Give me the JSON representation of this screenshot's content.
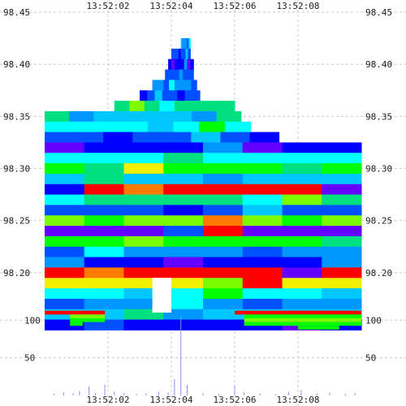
{
  "chart_data": {
    "type": "heatmap",
    "title": "",
    "xlabel": "",
    "ylabel": "",
    "x_ticks": [
      "13:52:02",
      "13:52:04",
      "13:52:06",
      "13:52:08"
    ],
    "price_ticks": [
      "98.45",
      "98.40",
      "98.35",
      "98.30",
      "98.25",
      "98.20"
    ],
    "volume_ticks": [
      "100",
      "50"
    ],
    "price_range": [
      98.15,
      98.45
    ],
    "volume_range": [
      0,
      110
    ],
    "grid": true,
    "colors": {
      "background": "#ffffff",
      "grid": "#c8c8c8",
      "volume": "#8c8cff",
      "palette": [
        "#ff0000",
        "#ff7a00",
        "#f0f000",
        "#7cfc00",
        "#00ff00",
        "#00e080",
        "#00ffff",
        "#00c8ff",
        "#0096ff",
        "#0050ff",
        "#0000ff",
        "#6400ff"
      ]
    },
    "time_range": [
      0,
      10
    ],
    "price_bands": [
      {
        "price": 98.42,
        "t_from": 4.3,
        "t_to": 4.6,
        "color": 8
      },
      {
        "price": 98.41,
        "t_from": 4.0,
        "t_to": 4.6,
        "color": 9
      },
      {
        "price": 98.4,
        "t_from": 3.9,
        "t_to": 4.7,
        "color": 10
      },
      {
        "price": 98.39,
        "t_from": 3.8,
        "t_to": 4.7,
        "color": 9
      },
      {
        "price": 98.38,
        "t_from": 3.4,
        "t_to": 4.8,
        "color": 8
      },
      {
        "price": 98.37,
        "t_from": 3.0,
        "t_to": 4.9,
        "color": 9
      },
      {
        "price": 98.36,
        "t_from": 2.2,
        "t_to": 6.0,
        "color": 5
      },
      {
        "price": 98.35,
        "t_from": 0.0,
        "t_to": 6.2,
        "color": 7
      },
      {
        "price": 98.34,
        "t_from": 0.0,
        "t_to": 6.5,
        "color": 6
      },
      {
        "price": 98.33,
        "t_from": 0.0,
        "t_to": 7.4,
        "color": 9
      },
      {
        "price": 98.32,
        "t_from": 0.0,
        "t_to": 10.0,
        "color": 10
      },
      {
        "price": 98.31,
        "t_from": 0.0,
        "t_to": 10.0,
        "color": 6
      },
      {
        "price": 98.3,
        "t_from": 0.0,
        "t_to": 10.0,
        "color": 4
      },
      {
        "price": 98.29,
        "t_from": 0.0,
        "t_to": 10.0,
        "color": 7
      },
      {
        "price": 98.28,
        "t_from": 0.0,
        "t_to": 10.0,
        "color": 0
      },
      {
        "price": 98.27,
        "t_from": 0.0,
        "t_to": 10.0,
        "color": 5
      },
      {
        "price": 98.26,
        "t_from": 0.0,
        "t_to": 10.0,
        "color": 9
      },
      {
        "price": 98.25,
        "t_from": 0.0,
        "t_to": 10.0,
        "color": 3
      },
      {
        "price": 98.24,
        "t_from": 0.0,
        "t_to": 10.0,
        "color": 11
      },
      {
        "price": 98.23,
        "t_from": 0.0,
        "t_to": 10.0,
        "color": 4
      },
      {
        "price": 98.22,
        "t_from": 0.0,
        "t_to": 10.0,
        "color": 8
      },
      {
        "price": 98.21,
        "t_from": 0.0,
        "t_to": 10.0,
        "color": 10
      },
      {
        "price": 98.2,
        "t_from": 0.0,
        "t_to": 10.0,
        "color": 0
      },
      {
        "price": 98.19,
        "t_from": 0.0,
        "t_to": 10.0,
        "color": 2
      },
      {
        "price": 98.18,
        "t_from": 0.0,
        "t_to": 10.0,
        "color": 6
      },
      {
        "price": 98.17,
        "t_from": 0.0,
        "t_to": 10.0,
        "color": 8
      },
      {
        "price": 98.16,
        "t_from": 0.0,
        "t_to": 10.0,
        "color": 7
      },
      {
        "price": 98.15,
        "t_from": 0.0,
        "t_to": 10.0,
        "color": 10
      }
    ],
    "volume_bands": [
      {
        "volume": 110,
        "t_from": 0.0,
        "t_to": 1.9,
        "color": 0
      },
      {
        "volume": 110,
        "t_from": 6.0,
        "t_to": 10.0,
        "color": 0
      },
      {
        "volume": 105,
        "t_from": 0.8,
        "t_to": 1.9,
        "color": 3
      },
      {
        "volume": 105,
        "t_from": 6.3,
        "t_to": 10.0,
        "color": 4
      },
      {
        "volume": 100,
        "t_from": 0.8,
        "t_to": 1.9,
        "color": 4
      },
      {
        "volume": 100,
        "t_from": 6.3,
        "t_to": 10.0,
        "color": 3
      },
      {
        "volume": 95,
        "t_from": 0.8,
        "t_to": 1.2,
        "color": 4
      },
      {
        "volume": 95,
        "t_from": 6.3,
        "t_to": 10.0,
        "color": 4
      },
      {
        "volume": 90,
        "t_from": 8.0,
        "t_to": 9.3,
        "color": 4
      }
    ],
    "volume_bars": [
      {
        "t": 0.3,
        "v": 2
      },
      {
        "t": 0.6,
        "v": 4
      },
      {
        "t": 0.9,
        "v": 3
      },
      {
        "t": 1.1,
        "v": 6
      },
      {
        "t": 1.4,
        "v": 12
      },
      {
        "t": 1.6,
        "v": 3
      },
      {
        "t": 1.9,
        "v": 14
      },
      {
        "t": 2.2,
        "v": 5
      },
      {
        "t": 2.5,
        "v": 3
      },
      {
        "t": 2.9,
        "v": 2
      },
      {
        "t": 3.2,
        "v": 3
      },
      {
        "t": 3.6,
        "v": 5
      },
      {
        "t": 3.9,
        "v": 4
      },
      {
        "t": 4.1,
        "v": 22
      },
      {
        "t": 4.3,
        "v": 105
      },
      {
        "t": 4.5,
        "v": 14
      },
      {
        "t": 5.0,
        "v": 3
      },
      {
        "t": 5.5,
        "v": 2
      },
      {
        "t": 6.0,
        "v": 13
      },
      {
        "t": 6.3,
        "v": 4
      },
      {
        "t": 6.8,
        "v": 3
      },
      {
        "t": 7.3,
        "v": 2
      },
      {
        "t": 7.7,
        "v": 5
      },
      {
        "t": 8.1,
        "v": 7
      },
      {
        "t": 8.6,
        "v": 3
      },
      {
        "t": 9.0,
        "v": 4
      },
      {
        "t": 9.5,
        "v": 2
      },
      {
        "t": 9.8,
        "v": 3
      }
    ]
  }
}
